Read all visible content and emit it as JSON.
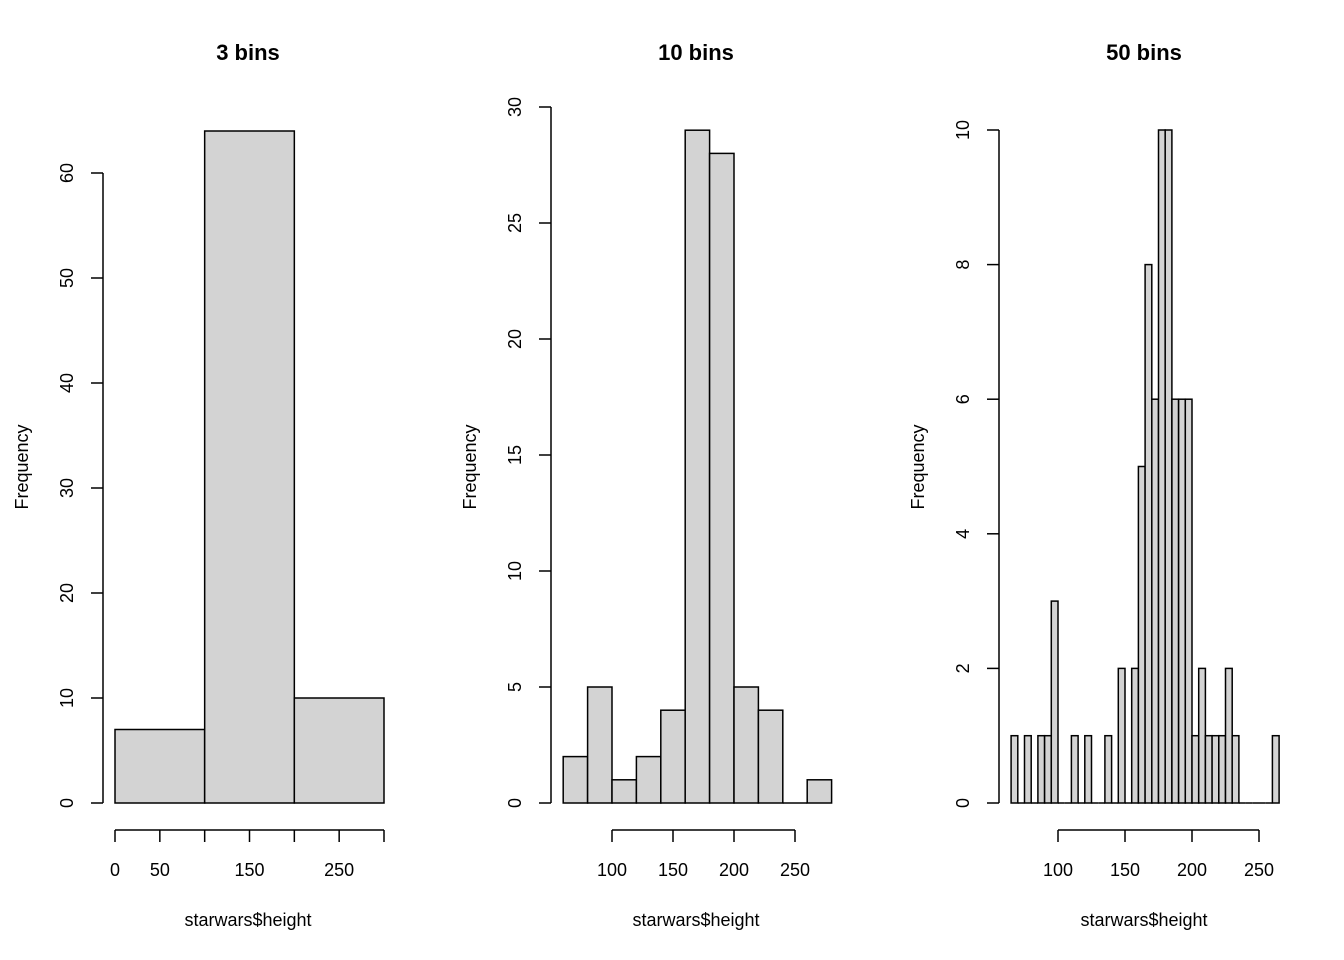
{
  "chart_data": [
    {
      "type": "bar",
      "title": "3 bins",
      "xlabel": "starwars$height",
      "ylabel": "Frequency",
      "breaks": [
        0,
        100,
        200,
        300
      ],
      "values": [
        7,
        64,
        10
      ],
      "xticks": [
        0,
        50,
        100,
        150,
        200,
        250,
        300
      ],
      "xtick_labels": [
        "0",
        "50",
        "",
        "150",
        "",
        "250",
        ""
      ],
      "yticks": [
        0,
        10,
        20,
        30,
        40,
        50,
        60
      ],
      "ytick_labels": [
        "0",
        "10",
        "20",
        "30",
        "40",
        "50",
        "60"
      ],
      "bar_color": "#d3d3d3"
    },
    {
      "type": "bar",
      "title": "10 bins",
      "xlabel": "starwars$height",
      "ylabel": "Frequency",
      "breaks": [
        60,
        80,
        100,
        120,
        140,
        160,
        180,
        200,
        220,
        240,
        260,
        280
      ],
      "values": [
        2,
        5,
        1,
        2,
        4,
        29,
        28,
        5,
        4,
        0,
        1
      ],
      "xticks": [
        100,
        150,
        200,
        250
      ],
      "xtick_labels": [
        "100",
        "150",
        "200",
        "250"
      ],
      "yticks": [
        0,
        5,
        10,
        15,
        20,
        25,
        30
      ],
      "ytick_labels": [
        "0",
        "5",
        "10",
        "15",
        "20",
        "25",
        "30"
      ],
      "bar_color": "#d3d3d3"
    },
    {
      "type": "bar",
      "title": "50 bins",
      "xlabel": "starwars$height",
      "ylabel": "Frequency",
      "break_start": 65,
      "break_width": 5,
      "values": [
        1,
        0,
        1,
        0,
        1,
        1,
        3,
        0,
        0,
        1,
        0,
        1,
        0,
        0,
        1,
        0,
        2,
        0,
        2,
        5,
        8,
        6,
        10,
        10,
        6,
        6,
        6,
        1,
        2,
        1,
        1,
        1,
        2,
        1,
        0,
        0,
        0,
        0,
        0,
        1
      ],
      "xticks": [
        100,
        150,
        200,
        250
      ],
      "xtick_labels": [
        "100",
        "150",
        "200",
        "250"
      ],
      "yticks": [
        0,
        2,
        4,
        6,
        8,
        10
      ],
      "ytick_labels": [
        "0",
        "2",
        "4",
        "6",
        "8",
        "10"
      ],
      "bar_color": "#d3d3d3"
    }
  ]
}
